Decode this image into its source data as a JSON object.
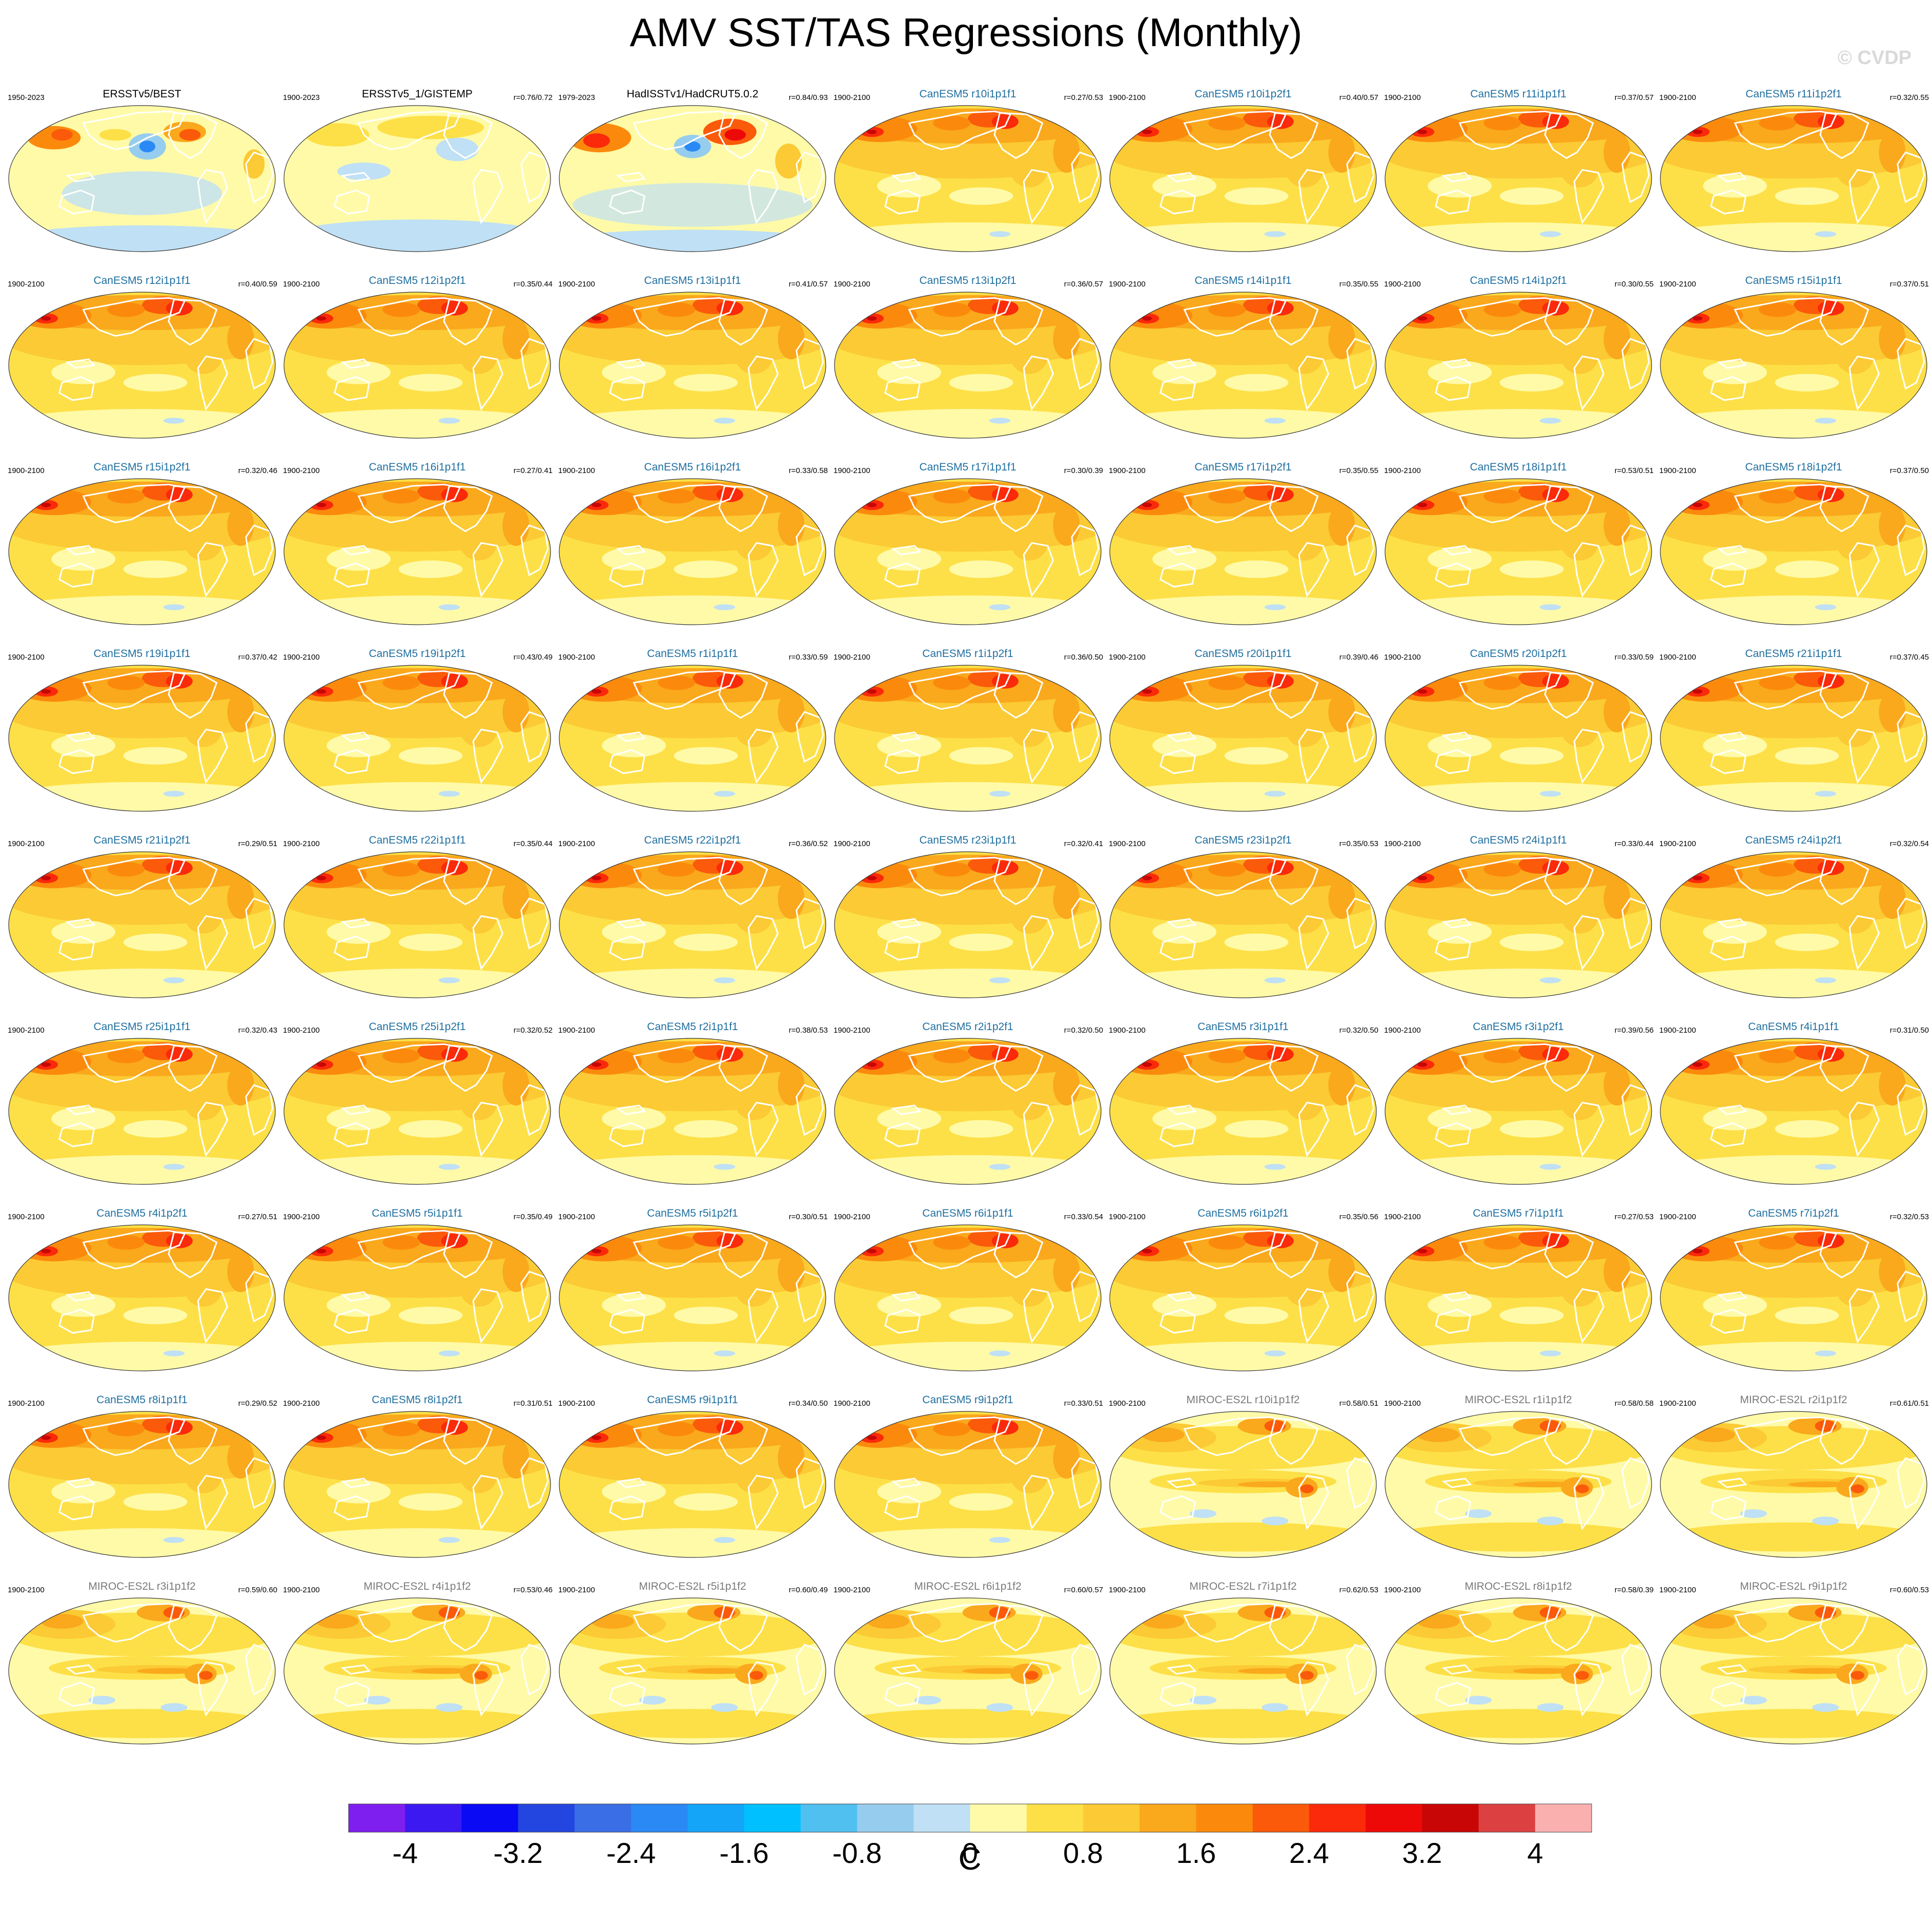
{
  "title": "AMV SST/TAS Regressions (Monthly)",
  "watermark": "© CVDP",
  "colors": {
    "obs_title": "#000000",
    "canesm_title": "#1f6fa0",
    "miroc_title": "#7a7a7a",
    "land_outline": "#ffffff"
  },
  "chart_data": {
    "type": "heatmap",
    "subtype": "map-panel-grid",
    "projection": "robinson",
    "layout": {
      "rows": 9,
      "columns": 7
    },
    "panels": [
      {
        "title": "ERSSTv5/BEST",
        "period": "1950-2023",
        "corr": "",
        "group": "obs",
        "pattern": "obs1"
      },
      {
        "title": "ERSSTv5_1/GISTEMP",
        "period": "1900-2023",
        "corr": "r=0.76/0.72",
        "group": "obs",
        "pattern": "obs2"
      },
      {
        "title": "HadISSTv1/HadCRUT5.0.2",
        "period": "1979-2023",
        "corr": "r=0.84/0.93",
        "group": "obs",
        "pattern": "obs3"
      },
      {
        "title": "CanESM5 r10i1p1f1",
        "period": "1900-2100",
        "corr": "r=0.27/0.53",
        "group": "canesm",
        "pattern": "can"
      },
      {
        "title": "CanESM5 r10i1p2f1",
        "period": "1900-2100",
        "corr": "r=0.40/0.57",
        "group": "canesm",
        "pattern": "can"
      },
      {
        "title": "CanESM5 r11i1p1f1",
        "period": "1900-2100",
        "corr": "r=0.37/0.57",
        "group": "canesm",
        "pattern": "can"
      },
      {
        "title": "CanESM5 r11i1p2f1",
        "period": "1900-2100",
        "corr": "r=0.32/0.55",
        "group": "canesm",
        "pattern": "can"
      },
      {
        "title": "CanESM5 r12i1p1f1",
        "period": "1900-2100",
        "corr": "r=0.40/0.59",
        "group": "canesm",
        "pattern": "can"
      },
      {
        "title": "CanESM5 r12i1p2f1",
        "period": "1900-2100",
        "corr": "r=0.35/0.44",
        "group": "canesm",
        "pattern": "can"
      },
      {
        "title": "CanESM5 r13i1p1f1",
        "period": "1900-2100",
        "corr": "r=0.41/0.57",
        "group": "canesm",
        "pattern": "can"
      },
      {
        "title": "CanESM5 r13i1p2f1",
        "period": "1900-2100",
        "corr": "r=0.36/0.57",
        "group": "canesm",
        "pattern": "can"
      },
      {
        "title": "CanESM5 r14i1p1f1",
        "period": "1900-2100",
        "corr": "r=0.35/0.55",
        "group": "canesm",
        "pattern": "can"
      },
      {
        "title": "CanESM5 r14i1p2f1",
        "period": "1900-2100",
        "corr": "r=0.30/0.55",
        "group": "canesm",
        "pattern": "can"
      },
      {
        "title": "CanESM5 r15i1p1f1",
        "period": "1900-2100",
        "corr": "r=0.37/0.51",
        "group": "canesm",
        "pattern": "can"
      },
      {
        "title": "CanESM5 r15i1p2f1",
        "period": "1900-2100",
        "corr": "r=0.32/0.46",
        "group": "canesm",
        "pattern": "can"
      },
      {
        "title": "CanESM5 r16i1p1f1",
        "period": "1900-2100",
        "corr": "r=0.27/0.41",
        "group": "canesm",
        "pattern": "can"
      },
      {
        "title": "CanESM5 r16i1p2f1",
        "period": "1900-2100",
        "corr": "r=0.33/0.58",
        "group": "canesm",
        "pattern": "can"
      },
      {
        "title": "CanESM5 r17i1p1f1",
        "period": "1900-2100",
        "corr": "r=0.30/0.39",
        "group": "canesm",
        "pattern": "can"
      },
      {
        "title": "CanESM5 r17i1p2f1",
        "period": "1900-2100",
        "corr": "r=0.35/0.55",
        "group": "canesm",
        "pattern": "can"
      },
      {
        "title": "CanESM5 r18i1p1f1",
        "period": "1900-2100",
        "corr": "r=0.53/0.51",
        "group": "canesm",
        "pattern": "can"
      },
      {
        "title": "CanESM5 r18i1p2f1",
        "period": "1900-2100",
        "corr": "r=0.37/0.50",
        "group": "canesm",
        "pattern": "can"
      },
      {
        "title": "CanESM5 r19i1p1f1",
        "period": "1900-2100",
        "corr": "r=0.37/0.42",
        "group": "canesm",
        "pattern": "can"
      },
      {
        "title": "CanESM5 r19i1p2f1",
        "period": "1900-2100",
        "corr": "r=0.43/0.49",
        "group": "canesm",
        "pattern": "can"
      },
      {
        "title": "CanESM5 r1i1p1f1",
        "period": "1900-2100",
        "corr": "r=0.33/0.59",
        "group": "canesm",
        "pattern": "can"
      },
      {
        "title": "CanESM5 r1i1p2f1",
        "period": "1900-2100",
        "corr": "r=0.36/0.50",
        "group": "canesm",
        "pattern": "can"
      },
      {
        "title": "CanESM5 r20i1p1f1",
        "period": "1900-2100",
        "corr": "r=0.39/0.46",
        "group": "canesm",
        "pattern": "can"
      },
      {
        "title": "CanESM5 r20i1p2f1",
        "period": "1900-2100",
        "corr": "r=0.33/0.59",
        "group": "canesm",
        "pattern": "can"
      },
      {
        "title": "CanESM5 r21i1p1f1",
        "period": "1900-2100",
        "corr": "r=0.37/0.45",
        "group": "canesm",
        "pattern": "can"
      },
      {
        "title": "CanESM5 r21i1p2f1",
        "period": "1900-2100",
        "corr": "r=0.29/0.51",
        "group": "canesm",
        "pattern": "can"
      },
      {
        "title": "CanESM5 r22i1p1f1",
        "period": "1900-2100",
        "corr": "r=0.35/0.44",
        "group": "canesm",
        "pattern": "can"
      },
      {
        "title": "CanESM5 r22i1p2f1",
        "period": "1900-2100",
        "corr": "r=0.36/0.52",
        "group": "canesm",
        "pattern": "can"
      },
      {
        "title": "CanESM5 r23i1p1f1",
        "period": "1900-2100",
        "corr": "r=0.32/0.41",
        "group": "canesm",
        "pattern": "can"
      },
      {
        "title": "CanESM5 r23i1p2f1",
        "period": "1900-2100",
        "corr": "r=0.35/0.53",
        "group": "canesm",
        "pattern": "can"
      },
      {
        "title": "CanESM5 r24i1p1f1",
        "period": "1900-2100",
        "corr": "r=0.33/0.44",
        "group": "canesm",
        "pattern": "can"
      },
      {
        "title": "CanESM5 r24i1p2f1",
        "period": "1900-2100",
        "corr": "r=0.32/0.54",
        "group": "canesm",
        "pattern": "can"
      },
      {
        "title": "CanESM5 r25i1p1f1",
        "period": "1900-2100",
        "corr": "r=0.32/0.43",
        "group": "canesm",
        "pattern": "can"
      },
      {
        "title": "CanESM5 r25i1p2f1",
        "period": "1900-2100",
        "corr": "r=0.32/0.52",
        "group": "canesm",
        "pattern": "can"
      },
      {
        "title": "CanESM5 r2i1p1f1",
        "period": "1900-2100",
        "corr": "r=0.38/0.53",
        "group": "canesm",
        "pattern": "can"
      },
      {
        "title": "CanESM5 r2i1p2f1",
        "period": "1900-2100",
        "corr": "r=0.32/0.50",
        "group": "canesm",
        "pattern": "can"
      },
      {
        "title": "CanESM5 r3i1p1f1",
        "period": "1900-2100",
        "corr": "r=0.32/0.50",
        "group": "canesm",
        "pattern": "can"
      },
      {
        "title": "CanESM5 r3i1p2f1",
        "period": "1900-2100",
        "corr": "r=0.39/0.56",
        "group": "canesm",
        "pattern": "can"
      },
      {
        "title": "CanESM5 r4i1p1f1",
        "period": "1900-2100",
        "corr": "r=0.31/0.50",
        "group": "canesm",
        "pattern": "can"
      },
      {
        "title": "CanESM5 r4i1p2f1",
        "period": "1900-2100",
        "corr": "r=0.27/0.51",
        "group": "canesm",
        "pattern": "can"
      },
      {
        "title": "CanESM5 r5i1p1f1",
        "period": "1900-2100",
        "corr": "r=0.35/0.49",
        "group": "canesm",
        "pattern": "can"
      },
      {
        "title": "CanESM5 r5i1p2f1",
        "period": "1900-2100",
        "corr": "r=0.30/0.51",
        "group": "canesm",
        "pattern": "can"
      },
      {
        "title": "CanESM5 r6i1p1f1",
        "period": "1900-2100",
        "corr": "r=0.33/0.54",
        "group": "canesm",
        "pattern": "can"
      },
      {
        "title": "CanESM5 r6i1p2f1",
        "period": "1900-2100",
        "corr": "r=0.35/0.56",
        "group": "canesm",
        "pattern": "can"
      },
      {
        "title": "CanESM5 r7i1p1f1",
        "period": "1900-2100",
        "corr": "r=0.27/0.53",
        "group": "canesm",
        "pattern": "can"
      },
      {
        "title": "CanESM5 r7i1p2f1",
        "period": "1900-2100",
        "corr": "r=0.32/0.53",
        "group": "canesm",
        "pattern": "can"
      },
      {
        "title": "CanESM5 r8i1p1f1",
        "period": "1900-2100",
        "corr": "r=0.29/0.52",
        "group": "canesm",
        "pattern": "can"
      },
      {
        "title": "CanESM5 r8i1p2f1",
        "period": "1900-2100",
        "corr": "r=0.31/0.51",
        "group": "canesm",
        "pattern": "can"
      },
      {
        "title": "CanESM5 r9i1p1f1",
        "period": "1900-2100",
        "corr": "r=0.34/0.50",
        "group": "canesm",
        "pattern": "can"
      },
      {
        "title": "CanESM5 r9i1p2f1",
        "period": "1900-2100",
        "corr": "r=0.33/0.51",
        "group": "canesm",
        "pattern": "can"
      },
      {
        "title": "MIROC-ES2L r10i1p1f2",
        "period": "1900-2100",
        "corr": "r=0.58/0.51",
        "group": "miroc",
        "pattern": "miroc"
      },
      {
        "title": "MIROC-ES2L r1i1p1f2",
        "period": "1900-2100",
        "corr": "r=0.58/0.58",
        "group": "miroc",
        "pattern": "miroc"
      },
      {
        "title": "MIROC-ES2L r2i1p1f2",
        "period": "1900-2100",
        "corr": "r=0.61/0.51",
        "group": "miroc",
        "pattern": "miroc"
      },
      {
        "title": "MIROC-ES2L r3i1p1f2",
        "period": "1900-2100",
        "corr": "r=0.59/0.60",
        "group": "miroc",
        "pattern": "miroc"
      },
      {
        "title": "MIROC-ES2L r4i1p1f2",
        "period": "1900-2100",
        "corr": "r=0.53/0.46",
        "group": "miroc",
        "pattern": "miroc"
      },
      {
        "title": "MIROC-ES2L r5i1p1f2",
        "period": "1900-2100",
        "corr": "r=0.60/0.49",
        "group": "miroc",
        "pattern": "miroc"
      },
      {
        "title": "MIROC-ES2L r6i1p1f2",
        "period": "1900-2100",
        "corr": "r=0.60/0.57",
        "group": "miroc",
        "pattern": "miroc"
      },
      {
        "title": "MIROC-ES2L r7i1p1f2",
        "period": "1900-2100",
        "corr": "r=0.62/0.53",
        "group": "miroc",
        "pattern": "miroc"
      },
      {
        "title": "MIROC-ES2L r8i1p1f2",
        "period": "1900-2100",
        "corr": "r=0.58/0.39",
        "group": "miroc",
        "pattern": "miroc"
      },
      {
        "title": "MIROC-ES2L r9i1p1f2",
        "period": "1900-2100",
        "corr": "r=0.60/0.53",
        "group": "miroc",
        "pattern": "miroc"
      }
    ],
    "colorbar": {
      "unit": "C",
      "range": [
        -4.4,
        4.4
      ],
      "step": 0.4,
      "tick_labels": [
        "-4",
        "-3.2",
        "-2.4",
        "-1.6",
        "-0.8",
        "0",
        "0.8",
        "1.6",
        "2.4",
        "3.2",
        "4"
      ],
      "tick_values": [
        -4,
        -3.2,
        -2.4,
        -1.6,
        -0.8,
        0,
        0.8,
        1.6,
        2.4,
        3.2,
        4
      ],
      "colors": [
        "#7f1fef",
        "#3b19f0",
        "#0a0af5",
        "#2346e0",
        "#3a6ee6",
        "#2a89f5",
        "#14a4f8",
        "#00c0ff",
        "#50c0f0",
        "#96cdee",
        "#bfe0f5",
        "#fffaa8",
        "#fde047",
        "#fbca34",
        "#faa81c",
        "#fb8a0c",
        "#fb5a0a",
        "#fa2a0a",
        "#ee0909",
        "#c80606",
        "#dd4040",
        "#fbb0b0"
      ]
    }
  }
}
